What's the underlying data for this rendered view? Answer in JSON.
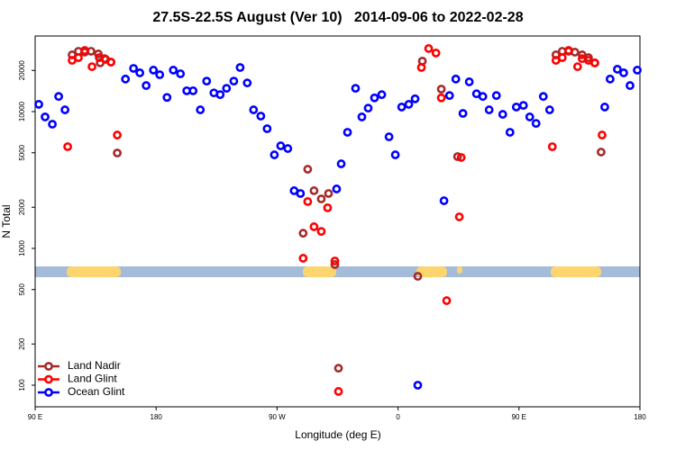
{
  "chart_data": {
    "type": "scatter",
    "title": "27.5S-22.5S August (Ver 10)   2014-09-06 to 2022-02-28",
    "x_label": "Longitude (deg E)",
    "y_label": "N Total",
    "xlim": [
      90,
      540
    ],
    "xticks": [
      {
        "value": 90,
        "label": "90 E"
      },
      {
        "value": 180,
        "label": "180"
      },
      {
        "value": 270,
        "label": "90 W"
      },
      {
        "value": 360,
        "label": "0"
      },
      {
        "value": 450,
        "label": "90 E"
      },
      {
        "value": 540,
        "label": "180"
      }
    ],
    "ylim": [
      69.5,
      35700
    ],
    "y_scale": "log",
    "yticks": [
      100,
      200,
      500,
      1000,
      2000,
      5000,
      10000,
      20000
    ],
    "legend": "lower left",
    "series": [
      {
        "name": "Land Nadir",
        "color": "#a52a2a",
        "x": [
          117.5,
          122.2,
          126.9,
          131.6,
          137.0,
          138.4,
          141.7,
          146.4,
          151.1,
          289.4,
          292.8,
          297.5,
          302.9,
          308.3,
          313.0,
          315.7,
          374.7,
          378.1,
          392.2,
          404.3,
          477.5,
          482.2,
          486.9,
          491.6,
          497.0,
          501.7,
          506.4,
          511.1
        ],
        "values": [
          26000,
          27600,
          27200,
          27600,
          26400,
          22700,
          24400,
          23000,
          4980,
          1290,
          3790,
          2640,
          2300,
          2520,
          762,
          133,
          625,
          23400,
          14600,
          4690,
          26000,
          27600,
          27600,
          27200,
          26000,
          24800,
          22700,
          5060
        ]
      },
      {
        "name": "Land Glint",
        "color": "#ff0000",
        "x": [
          114.2,
          117.5,
          122.2,
          126.9,
          132.3,
          137.7,
          142.4,
          146.4,
          151.1,
          289.4,
          292.8,
          297.5,
          302.9,
          307.6,
          313.0,
          315.7,
          377.4,
          382.8,
          388.2,
          392.2,
          396.2,
          405.6,
          407.0,
          474.8,
          477.5,
          482.2,
          486.9,
          493.6,
          497.0,
          501.7,
          506.4,
          511.8
        ],
        "values": [
          5540,
          23700,
          24800,
          28000,
          21300,
          24800,
          24100,
          23000,
          6740,
          847,
          2200,
          1440,
          1330,
          1980,
          809,
          90,
          21000,
          28900,
          26800,
          12600,
          415,
          1700,
          4620,
          5540,
          23700,
          24800,
          28000,
          21300,
          24400,
          23700,
          22700,
          6740
        ]
      },
      {
        "name": "Ocean Glint",
        "color": "#0000ff",
        "x": [
          92.7,
          97.4,
          102.8,
          107.5,
          112.2,
          157.2,
          163.2,
          167.9,
          172.6,
          178.0,
          182.7,
          188.1,
          192.8,
          198.1,
          202.8,
          207.5,
          212.9,
          217.6,
          223.0,
          227.7,
          232.4,
          237.8,
          242.5,
          247.8,
          252.5,
          257.9,
          262.6,
          268.0,
          272.7,
          278.0,
          282.7,
          287.4,
          314.3,
          317.7,
          322.4,
          328.4,
          333.1,
          337.8,
          342.5,
          347.9,
          353.3,
          358.0,
          362.7,
          368.0,
          372.7,
          374.7,
          394.2,
          398.3,
          403.0,
          408.3,
          413.0,
          418.4,
          423.1,
          427.8,
          433.2,
          437.9,
          443.3,
          448.0,
          453.3,
          458.0,
          462.7,
          468.1,
          472.8,
          513.8,
          517.8,
          523.2,
          527.9,
          532.6,
          538.0
        ],
        "values": [
          11300,
          9140,
          8090,
          12900,
          10300,
          17300,
          20700,
          19200,
          15500,
          20100,
          18600,
          12700,
          20100,
          18900,
          14200,
          14200,
          10300,
          16700,
          13700,
          13300,
          14800,
          16700,
          21000,
          16200,
          10300,
          9270,
          7500,
          4830,
          5620,
          5370,
          2640,
          2520,
          2720,
          4150,
          7060,
          14800,
          9140,
          10600,
          12600,
          13300,
          6540,
          4830,
          10800,
          11300,
          12400,
          100,
          2230,
          13100,
          17300,
          9700,
          16500,
          13500,
          12900,
          10300,
          13100,
          9550,
          7060,
          10800,
          11100,
          9140,
          8200,
          12900,
          10300,
          10800,
          17300,
          20400,
          19200,
          15500,
          20100
        ]
      }
    ]
  }
}
